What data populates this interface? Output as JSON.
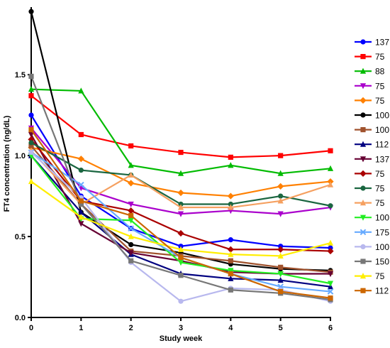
{
  "chart_data": {
    "type": "line",
    "xlabel": "Study week",
    "ylabel": "FT4 concentration (ng/dL)",
    "x": [
      0,
      1,
      2,
      3,
      4,
      5,
      6
    ],
    "xlim": [
      0,
      6
    ],
    "ylim": [
      0,
      1.9
    ],
    "yticks": [
      "0.0",
      "0.5",
      "1.0",
      "1.5"
    ],
    "xticks": [
      "0",
      "1",
      "2",
      "3",
      "4",
      "5",
      "6"
    ],
    "grid": false,
    "legend_position": "right",
    "series": [
      {
        "name": "137",
        "color": "#0000ff",
        "marker": "circle",
        "values": [
          1.25,
          0.75,
          0.55,
          0.44,
          0.48,
          0.44,
          0.43
        ]
      },
      {
        "name": "75",
        "color": "#ff0000",
        "marker": "square",
        "values": [
          1.37,
          1.13,
          1.06,
          1.02,
          0.99,
          1.0,
          1.03
        ]
      },
      {
        "name": "88",
        "color": "#00bb00",
        "marker": "triangle-up",
        "values": [
          1.41,
          1.4,
          0.94,
          0.89,
          0.94,
          0.89,
          0.92
        ]
      },
      {
        "name": "75",
        "color": "#aa00cc",
        "marker": "triangle-down",
        "values": [
          1.17,
          0.8,
          0.7,
          0.64,
          0.66,
          0.64,
          0.68
        ]
      },
      {
        "name": "75",
        "color": "#ff8000",
        "marker": "diamond",
        "values": [
          1.05,
          0.98,
          0.83,
          0.77,
          0.75,
          0.81,
          0.84
        ]
      },
      {
        "name": "100",
        "color": "#000000",
        "marker": "circle",
        "values": [
          1.89,
          0.65,
          0.45,
          0.4,
          0.33,
          0.3,
          0.29
        ]
      },
      {
        "name": "100",
        "color": "#a0522d",
        "marker": "square",
        "values": [
          1.06,
          0.7,
          0.41,
          0.38,
          0.35,
          0.31,
          0.28
        ]
      },
      {
        "name": "112",
        "color": "#000080",
        "marker": "triangle-up",
        "values": [
          1.0,
          0.65,
          0.39,
          0.27,
          0.24,
          0.23,
          0.19
        ]
      },
      {
        "name": "137",
        "color": "#660033",
        "marker": "triangle-down",
        "values": [
          1.13,
          0.58,
          0.4,
          0.35,
          0.28,
          0.27,
          0.27
        ]
      },
      {
        "name": "75",
        "color": "#aa0000",
        "marker": "diamond",
        "values": [
          1.1,
          0.72,
          0.66,
          0.52,
          0.42,
          0.42,
          0.41
        ]
      },
      {
        "name": "75",
        "color": "#1a6640",
        "marker": "circle",
        "values": [
          1.08,
          0.91,
          0.88,
          0.7,
          0.7,
          0.75,
          0.69
        ]
      },
      {
        "name": "75",
        "color": "#f5a060",
        "marker": "triangle-up",
        "values": [
          1.03,
          0.7,
          0.88,
          0.68,
          0.68,
          0.72,
          0.82
        ]
      },
      {
        "name": "100",
        "color": "#22ee22",
        "marker": "triangle-down",
        "values": [
          1.0,
          0.61,
          0.6,
          0.34,
          0.29,
          0.27,
          0.21
        ]
      },
      {
        "name": "175",
        "color": "#66aaff",
        "marker": "x",
        "values": [
          1.02,
          0.82,
          0.55,
          0.37,
          0.27,
          0.19,
          0.16
        ]
      },
      {
        "name": "100",
        "color": "#b8b8ee",
        "marker": "circle",
        "values": [
          1.02,
          0.74,
          0.34,
          0.1,
          0.18,
          0.17,
          0.1
        ]
      },
      {
        "name": "150",
        "color": "#777777",
        "marker": "square",
        "values": [
          1.49,
          0.7,
          0.35,
          0.26,
          0.17,
          0.15,
          0.11
        ]
      },
      {
        "name": "75",
        "color": "#ffee00",
        "marker": "triangle-up",
        "values": [
          0.84,
          0.62,
          0.5,
          0.42,
          0.39,
          0.38,
          0.46
        ]
      },
      {
        "name": "112",
        "color": "#cc6600",
        "marker": "square",
        "values": [
          1.16,
          0.72,
          0.63,
          0.37,
          0.27,
          0.16,
          0.12
        ]
      }
    ]
  }
}
